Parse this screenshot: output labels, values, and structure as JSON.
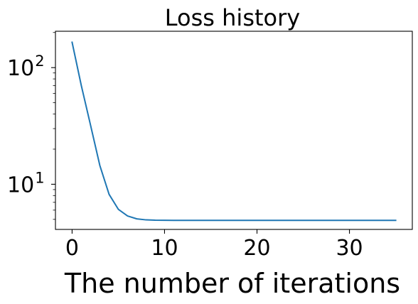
{
  "chart_data": {
    "type": "line",
    "title": "Loss history",
    "xlabel": "The number of iterations",
    "ylabel": "",
    "yscale": "log",
    "xlim": [
      -1.8,
      36.8
    ],
    "ylim": [
      4.1,
      205
    ],
    "x_ticks": [
      0,
      10,
      20,
      30
    ],
    "x_tick_labels": [
      "0",
      "10",
      "20",
      "30"
    ],
    "y_major_ticks": [
      10,
      100
    ],
    "y_tick_labels": [
      {
        "base": "10",
        "exp": "1"
      },
      {
        "base": "10",
        "exp": "2"
      }
    ],
    "y_minor_ticks": [
      5,
      6,
      7,
      8,
      9,
      20,
      30,
      40,
      50,
      60,
      70,
      80,
      90,
      200
    ],
    "grid": false,
    "series": [
      {
        "color": "#1f77b4",
        "x": [
          0,
          1,
          2,
          3,
          4,
          5,
          6,
          7,
          8,
          9,
          10,
          11,
          12,
          13,
          14,
          15,
          16,
          17,
          18,
          19,
          20,
          21,
          22,
          23,
          24,
          25,
          26,
          27,
          28,
          29,
          30,
          31,
          32,
          33,
          34,
          35
        ],
        "y": [
          165,
          70,
          32,
          14.5,
          8.2,
          6.1,
          5.35,
          5.05,
          4.95,
          4.92,
          4.91,
          4.9,
          4.9,
          4.9,
          4.9,
          4.9,
          4.9,
          4.9,
          4.9,
          4.9,
          4.9,
          4.9,
          4.9,
          4.9,
          4.9,
          4.9,
          4.9,
          4.9,
          4.9,
          4.9,
          4.9,
          4.9,
          4.9,
          4.9,
          4.9,
          4.9
        ]
      }
    ]
  }
}
